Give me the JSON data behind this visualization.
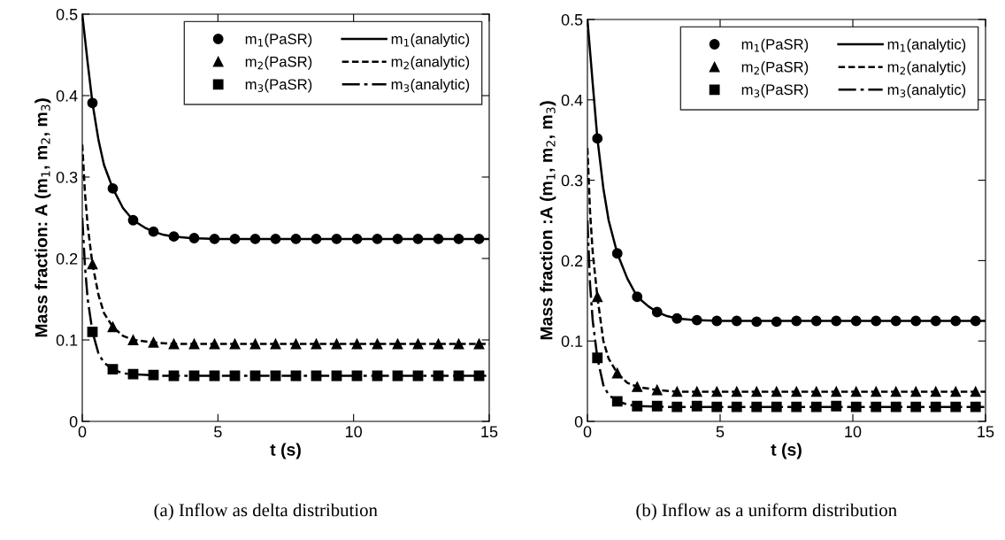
{
  "chart_data": [
    {
      "type": "line",
      "xlabel": "t (s)",
      "ylabel": "Mass fraction: A (m$_{1}$, m$_{2}$, m$_{3}$)",
      "xlim": [
        0,
        15
      ],
      "ylim": [
        0,
        0.5
      ],
      "xticks": [
        0,
        5,
        10,
        15
      ],
      "yticks": [
        0,
        0.1,
        0.2,
        0.3,
        0.4,
        0.5
      ],
      "grid": false,
      "legend": "top right",
      "annotations": [
        "(a) Inflow as delta distribution"
      ],
      "series": [
        {
          "name": "m$_{1}$(PaSR)",
          "type": "scatter",
          "marker": "circle",
          "color": "#000000",
          "x": [
            0.375,
            1.125,
            1.875,
            2.625,
            3.375,
            4.125,
            4.875,
            5.625,
            6.375,
            7.125,
            7.875,
            8.625,
            9.375,
            10.125,
            10.875,
            11.625,
            12.375,
            13.125,
            13.875,
            14.625
          ],
          "values": [
            0.391,
            0.286,
            0.247,
            0.233,
            0.227,
            0.225,
            0.224,
            0.224,
            0.224,
            0.224,
            0.224,
            0.224,
            0.224,
            0.224,
            0.224,
            0.224,
            0.224,
            0.224,
            0.224,
            0.224
          ]
        },
        {
          "name": "m$_{2}$(PaSR)",
          "type": "scatter",
          "marker": "triangle",
          "color": "#000000",
          "x": [
            0.375,
            1.125,
            1.875,
            2.625,
            3.375,
            4.125,
            4.875,
            5.625,
            6.375,
            7.125,
            7.875,
            8.625,
            9.375,
            10.125,
            10.875,
            11.625,
            12.375,
            13.125,
            13.875,
            14.625
          ],
          "values": [
            0.193,
            0.116,
            0.1,
            0.097,
            0.095,
            0.095,
            0.095,
            0.095,
            0.095,
            0.095,
            0.095,
            0.095,
            0.095,
            0.095,
            0.095,
            0.095,
            0.095,
            0.095,
            0.095,
            0.095
          ]
        },
        {
          "name": "m$_{3}$(PaSR)",
          "type": "scatter",
          "marker": "square",
          "color": "#000000",
          "x": [
            0.375,
            1.125,
            1.875,
            2.625,
            3.375,
            4.125,
            4.875,
            5.625,
            6.375,
            7.125,
            7.875,
            8.625,
            9.375,
            10.125,
            10.875,
            11.625,
            12.375,
            13.125,
            13.875,
            14.625
          ],
          "values": [
            0.11,
            0.064,
            0.058,
            0.057,
            0.056,
            0.056,
            0.056,
            0.056,
            0.056,
            0.056,
            0.056,
            0.056,
            0.056,
            0.056,
            0.056,
            0.056,
            0.056,
            0.056,
            0.056,
            0.056
          ]
        },
        {
          "name": "m$_{1}$(analytic)",
          "type": "line",
          "line_style": "solid",
          "color": "#000000",
          "x": [
            0,
            0.2,
            0.375,
            0.6,
            0.8,
            1.125,
            1.5,
            1.875,
            2.3,
            2.625,
            3,
            3.375,
            4,
            5,
            15
          ],
          "values": [
            0.5,
            0.44,
            0.391,
            0.345,
            0.315,
            0.286,
            0.262,
            0.247,
            0.238,
            0.233,
            0.229,
            0.227,
            0.225,
            0.224,
            0.224
          ]
        },
        {
          "name": "m$_{2}$(analytic)",
          "type": "line",
          "line_style": "dashed",
          "color": "#000000",
          "x": [
            0,
            0.1,
            0.2,
            0.375,
            0.6,
            0.8,
            1.125,
            1.5,
            1.875,
            2.625,
            3.375,
            15
          ],
          "values": [
            0.34,
            0.28,
            0.24,
            0.193,
            0.155,
            0.133,
            0.116,
            0.105,
            0.1,
            0.097,
            0.095,
            0.095
          ]
        },
        {
          "name": "m$_{3}$(analytic)",
          "type": "line",
          "line_style": "dashdot",
          "color": "#000000",
          "x": [
            0,
            0.1,
            0.2,
            0.375,
            0.6,
            0.8,
            1.125,
            1.5,
            1.875,
            3,
            15
          ],
          "values": [
            0.25,
            0.19,
            0.15,
            0.11,
            0.083,
            0.072,
            0.064,
            0.059,
            0.058,
            0.056,
            0.056
          ]
        }
      ]
    },
    {
      "type": "line",
      "xlabel": "t (s)",
      "ylabel": "Mass fraction :A (m$_{1}$, m$_{2}$, m$_{3}$)",
      "xlim": [
        0,
        15
      ],
      "ylim": [
        0,
        0.5
      ],
      "xticks": [
        0,
        5,
        10,
        15
      ],
      "yticks": [
        0,
        0.1,
        0.2,
        0.3,
        0.4,
        0.5
      ],
      "grid": false,
      "legend": "top right",
      "annotations": [
        "(b) Inflow as a uniform distribution"
      ],
      "series": [
        {
          "name": "m$_{1}$(PaSR)",
          "type": "scatter",
          "marker": "circle",
          "color": "#000000",
          "x": [
            0.375,
            1.125,
            1.875,
            2.625,
            3.375,
            4.125,
            4.875,
            5.625,
            6.375,
            7.125,
            7.875,
            8.625,
            9.375,
            10.125,
            10.875,
            11.625,
            12.375,
            13.125,
            13.875,
            14.625
          ],
          "values": [
            0.352,
            0.209,
            0.155,
            0.136,
            0.128,
            0.126,
            0.125,
            0.125,
            0.124,
            0.124,
            0.125,
            0.125,
            0.125,
            0.125,
            0.125,
            0.125,
            0.125,
            0.125,
            0.125,
            0.125
          ]
        },
        {
          "name": "m$_{2}$(PaSR)",
          "type": "scatter",
          "marker": "triangle",
          "color": "#000000",
          "x": [
            0.375,
            1.125,
            1.875,
            2.625,
            3.375,
            4.125,
            4.875,
            5.625,
            6.375,
            7.125,
            7.875,
            8.625,
            9.375,
            10.125,
            10.875,
            11.625,
            12.375,
            13.125,
            13.875,
            14.625
          ],
          "values": [
            0.155,
            0.06,
            0.043,
            0.039,
            0.037,
            0.037,
            0.037,
            0.037,
            0.037,
            0.037,
            0.037,
            0.037,
            0.037,
            0.037,
            0.037,
            0.037,
            0.037,
            0.037,
            0.037,
            0.037
          ]
        },
        {
          "name": "m$_{3}$(PaSR)",
          "type": "scatter",
          "marker": "square",
          "color": "#000000",
          "x": [
            0.375,
            1.125,
            1.875,
            2.625,
            3.375,
            4.125,
            4.875,
            5.625,
            6.375,
            7.125,
            7.875,
            8.625,
            9.375,
            10.125,
            10.875,
            11.625,
            12.375,
            13.125,
            13.875,
            14.625
          ],
          "values": [
            0.079,
            0.025,
            0.019,
            0.019,
            0.018,
            0.019,
            0.018,
            0.018,
            0.018,
            0.018,
            0.018,
            0.018,
            0.019,
            0.018,
            0.018,
            0.018,
            0.018,
            0.018,
            0.018,
            0.018
          ]
        },
        {
          "name": "m$_{1}$(analytic)",
          "type": "line",
          "line_style": "solid",
          "color": "#000000",
          "x": [
            0,
            0.2,
            0.375,
            0.6,
            0.8,
            1.125,
            1.5,
            1.875,
            2.3,
            2.625,
            3,
            3.375,
            4,
            5,
            15
          ],
          "values": [
            0.5,
            0.42,
            0.352,
            0.29,
            0.25,
            0.209,
            0.178,
            0.155,
            0.143,
            0.136,
            0.131,
            0.128,
            0.126,
            0.125,
            0.125
          ]
        },
        {
          "name": "m$_{2}$(analytic)",
          "type": "line",
          "line_style": "dashed",
          "color": "#000000",
          "x": [
            0,
            0.1,
            0.2,
            0.375,
            0.6,
            0.8,
            1.125,
            1.5,
            1.875,
            2.625,
            3.375,
            15
          ],
          "values": [
            0.34,
            0.26,
            0.21,
            0.155,
            0.1,
            0.078,
            0.06,
            0.048,
            0.043,
            0.039,
            0.037,
            0.037
          ]
        },
        {
          "name": "m$_{3}$(analytic)",
          "type": "line",
          "line_style": "dashdot",
          "color": "#000000",
          "x": [
            0,
            0.1,
            0.2,
            0.375,
            0.6,
            0.8,
            1.125,
            1.5,
            1.875,
            3,
            15
          ],
          "values": [
            0.25,
            0.17,
            0.125,
            0.079,
            0.045,
            0.033,
            0.025,
            0.021,
            0.019,
            0.018,
            0.018
          ]
        }
      ]
    }
  ]
}
